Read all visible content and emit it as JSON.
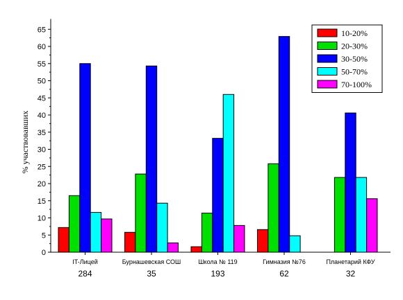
{
  "chart_data": {
    "type": "bar",
    "title": "",
    "xlabel": "",
    "ylabel": "% участвовавших",
    "ylim": [
      0,
      68
    ],
    "yticks": [
      0,
      5,
      10,
      15,
      20,
      25,
      30,
      35,
      40,
      45,
      50,
      55,
      60,
      65
    ],
    "grid": false,
    "legend_position": "top-right",
    "categories": [
      "IT-Лицей",
      "Бурнашевская СОШ",
      "Школа № 119",
      "Гимназия №76",
      "Планетарий КФУ"
    ],
    "category_counts": [
      "284",
      "35",
      "193",
      "62",
      "32"
    ],
    "series": [
      {
        "name": "10-20%",
        "color": "#ff0000",
        "values": [
          7.2,
          5.8,
          1.6,
          6.6,
          0
        ]
      },
      {
        "name": "20-30%",
        "color": "#00e000",
        "values": [
          16.5,
          22.8,
          11.4,
          25.8,
          21.8
        ]
      },
      {
        "name": "30-50%",
        "color": "#0000ff",
        "values": [
          55.0,
          54.3,
          33.2,
          62.9,
          40.6
        ]
      },
      {
        "name": "50-70%",
        "color": "#00ffff",
        "values": [
          11.6,
          14.3,
          46.0,
          4.8,
          21.8
        ]
      },
      {
        "name": "70-100%",
        "color": "#ff00ff",
        "values": [
          9.7,
          2.7,
          7.8,
          0,
          15.6
        ]
      }
    ]
  }
}
